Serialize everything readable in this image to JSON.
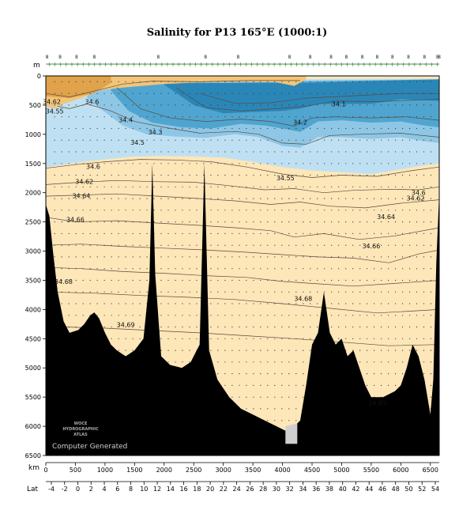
{
  "chart_data": {
    "type": "heatmap",
    "title": "Salinity for P13 165°E (1000:1)",
    "depth_unit": "m",
    "distance_unit": "km",
    "lat_label": "Lat",
    "ylim": [
      0,
      6500
    ],
    "xlim": [
      0,
      6650
    ],
    "y_ticks": [
      "0",
      "500",
      "1000",
      "1500",
      "2000",
      "2500",
      "3000",
      "3500",
      "4000",
      "4500",
      "5000",
      "5500",
      "6000",
      "6500"
    ],
    "km_ticks": [
      "0",
      "500",
      "1000",
      "1500",
      "2000",
      "2500",
      "3000",
      "3500",
      "4000",
      "4500",
      "5000",
      "5500",
      "6000",
      "6500"
    ],
    "lat_ticks": [
      "-4",
      "-2",
      "0",
      "2",
      "4",
      "6",
      "8",
      "10",
      "12",
      "14",
      "16",
      "18",
      "20",
      "22",
      "24",
      "26",
      "28",
      "30",
      "32",
      "34",
      "36",
      "38",
      "40",
      "42",
      "44",
      "46",
      "48",
      "50",
      "52",
      "54"
    ],
    "colors": {
      "fresh_dark": "#2b86b8",
      "fresh_mid": "#4fa5d0",
      "fresh_light": "#8ec7e6",
      "fresh_pale": "#bfe0f2",
      "salty_pale": "#fde6b8",
      "salty_mid": "#f2c57a",
      "salty_dark": "#e0a24a",
      "bathymetry": "#000000",
      "contour": "#5a4a3a"
    },
    "station_labels": [
      "8",
      "8",
      "8",
      "8",
      "8",
      "8",
      "8",
      "8",
      "8",
      "8",
      "8",
      "8",
      "8",
      "8",
      "8",
      "8",
      "8",
      "8"
    ],
    "contour_labels": [
      {
        "text": "34.62",
        "km": 100,
        "depth": 480
      },
      {
        "text": "34.6",
        "km": 780,
        "depth": 480
      },
      {
        "text": "34.55",
        "km": 150,
        "depth": 640
      },
      {
        "text": "34.1",
        "km": 4950,
        "depth": 520
      },
      {
        "text": "34.4",
        "km": 1350,
        "depth": 790
      },
      {
        "text": "34.2",
        "km": 4300,
        "depth": 830
      },
      {
        "text": "34.3",
        "km": 1850,
        "depth": 1000
      },
      {
        "text": "34.5",
        "km": 1550,
        "depth": 1180
      },
      {
        "text": "34.6",
        "km": 800,
        "depth": 1590
      },
      {
        "text": "34.55",
        "km": 4050,
        "depth": 1790
      },
      {
        "text": "34.62",
        "km": 650,
        "depth": 1850
      },
      {
        "text": "34.64",
        "km": 600,
        "depth": 2090
      },
      {
        "text": "34.6",
        "km": 6300,
        "depth": 2040
      },
      {
        "text": "34.62",
        "km": 6250,
        "depth": 2130
      },
      {
        "text": "34.64",
        "km": 5750,
        "depth": 2450
      },
      {
        "text": "34.66",
        "km": 500,
        "depth": 2500
      },
      {
        "text": "34.66",
        "km": 5500,
        "depth": 2950
      },
      {
        "text": "34.68",
        "km": 300,
        "depth": 3560
      },
      {
        "text": "34.68",
        "km": 4350,
        "depth": 3850
      },
      {
        "text": "34.69",
        "km": 1350,
        "depth": 4300
      },
      {
        "text": "34.69",
        "km": 5600,
        "depth": 5640
      }
    ],
    "logo_lines": [
      "WOCE",
      "HYDROGRAPHIC",
      "ATLAS"
    ],
    "credit": "Computer Generated"
  }
}
